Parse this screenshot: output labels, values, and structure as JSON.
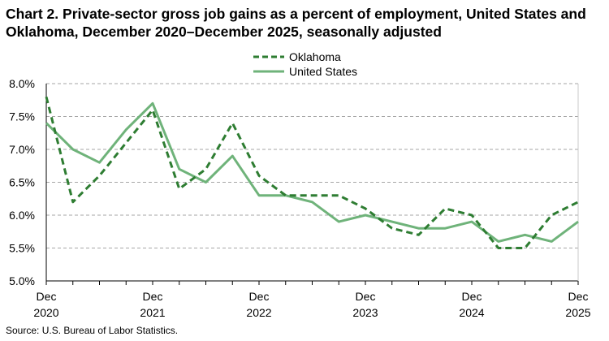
{
  "chart_data": {
    "type": "line",
    "title": "Chart 2. Private-sector gross job gains as a percent of employment, United States and Oklahoma, December 2020–December 2025, seasonally adjusted",
    "source": "Source: U.S. Bureau of Labor Statistics.",
    "ylim": [
      5.0,
      8.0
    ],
    "y_ticks": [
      "5.0%",
      "5.5%",
      "6.0%",
      "6.5%",
      "7.0%",
      "7.5%",
      "8.0%"
    ],
    "y_tick_values": [
      5.0,
      5.5,
      6.0,
      6.5,
      7.0,
      7.5,
      8.0
    ],
    "grid": "horizontal dashed",
    "legend_position": "top-center",
    "x_tick_labels": [
      {
        "month": "Dec",
        "year": "2020",
        "index": 0
      },
      {
        "month": "Dec",
        "year": "2021",
        "index": 4
      },
      {
        "month": "Dec",
        "year": "2022",
        "index": 8
      },
      {
        "month": "Dec",
        "year": "2023",
        "index": 12
      },
      {
        "month": "Dec",
        "year": "2024",
        "index": 16
      },
      {
        "month": "Dec",
        "year": "2025",
        "index": 20
      }
    ],
    "x": [
      "Dec 2020",
      "Mar 2021",
      "Jun 2021",
      "Sep 2021",
      "Dec 2021",
      "Mar 2022",
      "Jun 2022",
      "Sep 2022",
      "Dec 2022",
      "Mar 2023",
      "Jun 2023",
      "Sep 2023",
      "Dec 2023",
      "Mar 2024",
      "Jun 2024",
      "Sep 2024",
      "Dec 2024",
      "Mar 2025",
      "Jun 2025",
      "Sep 2025",
      "Dec 2025"
    ],
    "series": [
      {
        "name": "Oklahoma",
        "color": "#2e7d32",
        "style": "dashed",
        "values": [
          7.8,
          6.2,
          6.6,
          7.1,
          7.6,
          6.4,
          6.7,
          7.4,
          6.6,
          6.3,
          6.3,
          6.3,
          6.1,
          5.8,
          5.7,
          6.1,
          6.0,
          5.5,
          5.5,
          6.0,
          6.2
        ]
      },
      {
        "name": "United States",
        "color": "#6fb37a",
        "style": "solid",
        "values": [
          7.4,
          7.0,
          6.8,
          7.3,
          7.7,
          6.7,
          6.5,
          6.9,
          6.3,
          6.3,
          6.2,
          5.9,
          6.0,
          5.9,
          5.8,
          5.8,
          5.9,
          5.6,
          5.7,
          5.6,
          5.9
        ]
      }
    ]
  }
}
